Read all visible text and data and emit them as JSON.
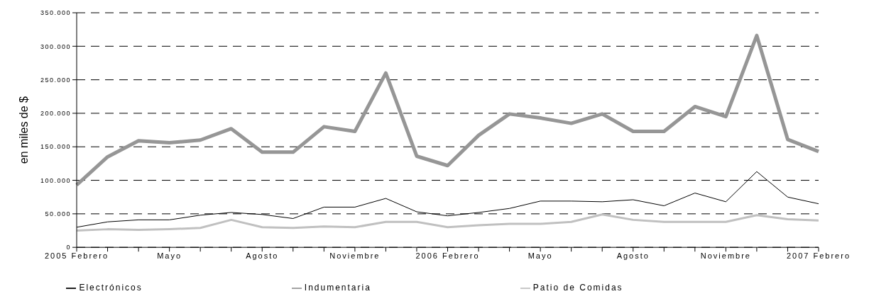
{
  "chart_data": {
    "type": "line",
    "ylabel": "en miles de $",
    "categories": [
      "2005 Febrero",
      null,
      null,
      "Mayo",
      null,
      null,
      "Agosto",
      null,
      null,
      "Noviembre",
      null,
      null,
      "2006 Febrero",
      null,
      null,
      "Mayo",
      null,
      null,
      "Agosto",
      null,
      null,
      "Noviembre",
      null,
      null,
      "2007 Febrero"
    ],
    "series": [
      {
        "name": "Electrónicos",
        "color": "#000000",
        "values": [
          30000,
          38000,
          41000,
          41000,
          48000,
          52000,
          49000,
          43000,
          60000,
          60000,
          73000,
          53000,
          47000,
          52000,
          58000,
          69000,
          69000,
          68000,
          71000,
          62000,
          81000,
          68000,
          113000,
          75000,
          65000
        ]
      },
      {
        "name": "Indumentaria",
        "color": "#969696",
        "values": [
          93000,
          135000,
          159000,
          156000,
          160000,
          177000,
          142000,
          142000,
          180000,
          173000,
          260000,
          136000,
          122000,
          167000,
          199000,
          193000,
          185000,
          199000,
          173000,
          173000,
          210000,
          195000,
          316000,
          161000,
          143000
        ]
      },
      {
        "name": "Patio de Comidas",
        "color": "#c0c0c0",
        "values": [
          25000,
          27000,
          26000,
          27000,
          29000,
          41000,
          30000,
          29000,
          31000,
          30000,
          38000,
          38000,
          30000,
          33000,
          35000,
          35000,
          38000,
          49000,
          41000,
          38000,
          38000,
          38000,
          48000,
          42000,
          40000
        ]
      }
    ],
    "ylim": [
      0,
      350000
    ],
    "yticks": [
      0,
      {
        "value": 50000,
        "label": "50.000"
      },
      {
        "value": 100000,
        "label": "100.000"
      },
      {
        "value": 150000,
        "label": "150.000"
      },
      {
        "value": 200000,
        "label": "200.000"
      },
      {
        "value": 250000,
        "label": "250.000"
      },
      {
        "value": 300000,
        "label": "300.000"
      },
      {
        "value": 350000,
        "label": "350.000"
      }
    ],
    "grid": "y",
    "legend": "bottom",
    "marker": "none",
    "line_style": "solid"
  }
}
